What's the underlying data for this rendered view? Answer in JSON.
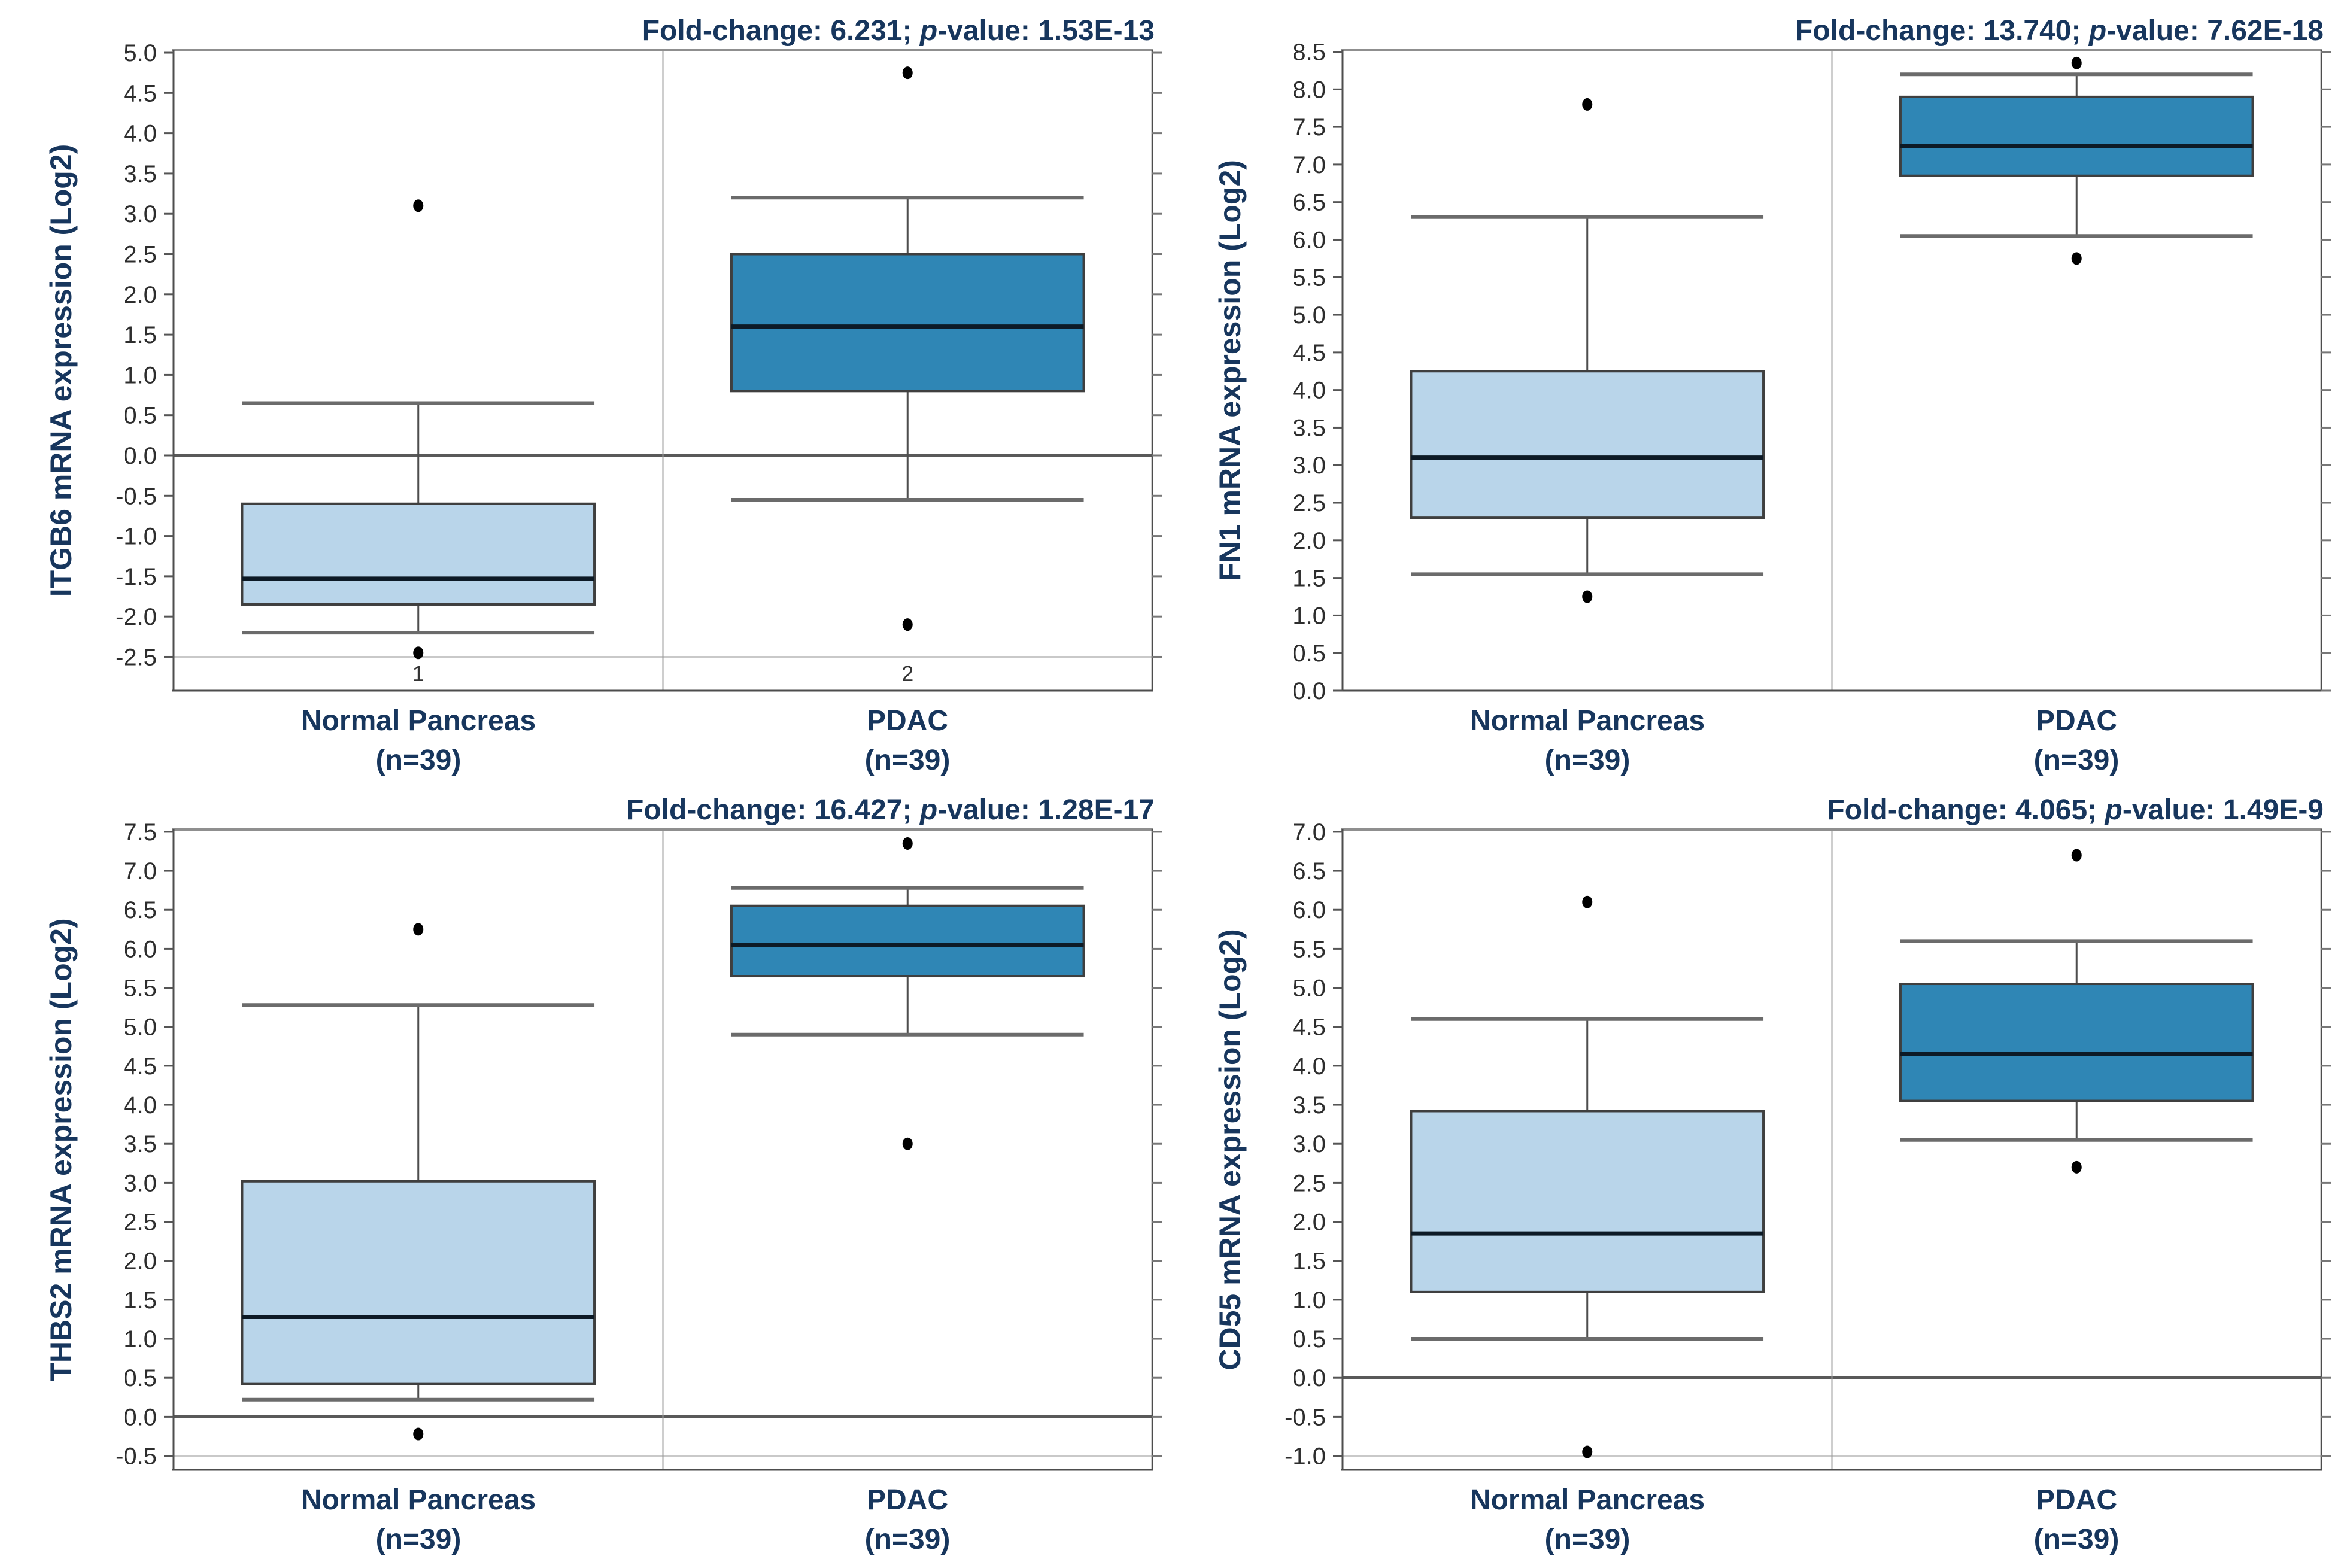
{
  "page": {
    "background": "#ffffff"
  },
  "colors": {
    "heading_navy": "#17365d",
    "normal_box_fill": "#b9d5ea",
    "pdac_box_fill": "#2f86b5",
    "box_border": "#3f3f3f",
    "median_line": "#0d1a26",
    "whisker": "#4d4d4d",
    "whisker_cap": "#6b6b6b",
    "frame_top": "#8f8f8f",
    "zero_line": "#595959",
    "light_gridline": "#c9c9c9",
    "divider": "#9c9c9c",
    "tick_text": "#2d2d2d"
  },
  "shared": {
    "title_fold_label": "Fold-change: ",
    "title_sep": "; ",
    "title_p_label": "p",
    "title_value_label": "-value: ",
    "group1_label": "Normal Pancreas",
    "group2_label": "PDAC",
    "n_label": "(n=39)"
  },
  "chart_data": [
    {
      "type": "box",
      "gene": "ITGB6",
      "title": "Fold-change: 6.231; p-value: 1.53E-13",
      "fold_change": "6.231",
      "p_value": "1.53E-13",
      "ylabel": "ITGB6 mRNA expression (Log2)",
      "categories": [
        "Normal Pancreas (n=39)",
        "PDAC (n=39)"
      ],
      "x_tick_labels": [
        "1",
        "2"
      ],
      "y_axis": {
        "tick_max": 5.0,
        "tick_min": -2.5,
        "tick_step": 0.5,
        "frame_top": 5.03,
        "frame_bottom": -2.92,
        "zero_line": true,
        "light_gridline_at": -2.5
      },
      "series": [
        {
          "name": "Normal Pancreas",
          "n": 39,
          "fill": "#b9d5ea",
          "whisker_low": -2.2,
          "q1": -1.85,
          "median": -1.53,
          "q3": -0.6,
          "whisker_high": 0.65,
          "outliers": [
            3.1,
            -2.45
          ]
        },
        {
          "name": "PDAC",
          "n": 39,
          "fill": "#2f86b5",
          "whisker_low": -0.55,
          "q1": 0.8,
          "median": 1.6,
          "q3": 2.5,
          "whisker_high": 3.2,
          "outliers": [
            4.75,
            -2.1
          ]
        }
      ]
    },
    {
      "type": "box",
      "gene": "FN1",
      "title": "Fold-change: 13.740; p-value: 7.62E-18",
      "fold_change": "13.740",
      "p_value": "7.62E-18",
      "ylabel": "FN1 mRNA expression (Log2)",
      "categories": [
        "Normal Pancreas (n=39)",
        "PDAC (n=39)"
      ],
      "x_tick_labels": [],
      "y_axis": {
        "tick_max": 8.5,
        "tick_min": 0.0,
        "tick_step": 0.5,
        "frame_top": 8.52,
        "frame_bottom": 0.0,
        "zero_line": false,
        "light_gridline_at": null
      },
      "series": [
        {
          "name": "Normal Pancreas",
          "n": 39,
          "fill": "#b9d5ea",
          "whisker_low": 1.55,
          "q1": 2.3,
          "median": 3.1,
          "q3": 4.25,
          "whisker_high": 6.3,
          "outliers": [
            7.8,
            1.25
          ]
        },
        {
          "name": "PDAC",
          "n": 39,
          "fill": "#2f86b5",
          "whisker_low": 6.05,
          "q1": 6.85,
          "median": 7.25,
          "q3": 7.9,
          "whisker_high": 8.2,
          "outliers": [
            8.35,
            5.75
          ]
        }
      ]
    },
    {
      "type": "box",
      "gene": "THBS2",
      "title": "Fold-change: 16.427; p-value: 1.28E-17",
      "fold_change": "16.427",
      "p_value": "1.28E-17",
      "ylabel": "THBS2 mRNA expression (Log2)",
      "categories": [
        "Normal Pancreas (n=39)",
        "PDAC (n=39)"
      ],
      "x_tick_labels": [],
      "y_axis": {
        "tick_max": 7.5,
        "tick_min": -0.5,
        "tick_step": 0.5,
        "frame_top": 7.53,
        "frame_bottom": -0.68,
        "zero_line": true,
        "light_gridline_at": -0.5
      },
      "series": [
        {
          "name": "Normal Pancreas",
          "n": 39,
          "fill": "#b9d5ea",
          "whisker_low": 0.22,
          "q1": 0.42,
          "median": 1.28,
          "q3": 3.02,
          "whisker_high": 5.28,
          "outliers": [
            6.25,
            -0.22
          ]
        },
        {
          "name": "PDAC",
          "n": 39,
          "fill": "#2f86b5",
          "whisker_low": 4.9,
          "q1": 5.65,
          "median": 6.05,
          "q3": 6.55,
          "whisker_high": 6.78,
          "outliers": [
            7.35,
            3.5
          ]
        }
      ]
    },
    {
      "type": "box",
      "gene": "CD55",
      "title": "Fold-change: 4.065; p-value: 1.49E-9",
      "fold_change": "4.065",
      "p_value": "1.49E-9",
      "ylabel": "CD55 mRNA expression (Log2)",
      "categories": [
        "Normal Pancreas (n=39)",
        "PDAC (n=39)"
      ],
      "x_tick_labels": [],
      "y_axis": {
        "tick_max": 7.0,
        "tick_min": -1.0,
        "tick_step": 0.5,
        "frame_top": 7.03,
        "frame_bottom": -1.18,
        "zero_line": true,
        "light_gridline_at": -1.0
      },
      "series": [
        {
          "name": "Normal Pancreas",
          "n": 39,
          "fill": "#b9d5ea",
          "whisker_low": 0.5,
          "q1": 1.1,
          "median": 1.85,
          "q3": 3.42,
          "whisker_high": 4.6,
          "outliers": [
            6.1,
            -0.95
          ]
        },
        {
          "name": "PDAC",
          "n": 39,
          "fill": "#2f86b5",
          "whisker_low": 3.05,
          "q1": 3.55,
          "median": 4.15,
          "q3": 5.05,
          "whisker_high": 5.6,
          "outliers": [
            6.7,
            2.7
          ]
        }
      ]
    }
  ]
}
